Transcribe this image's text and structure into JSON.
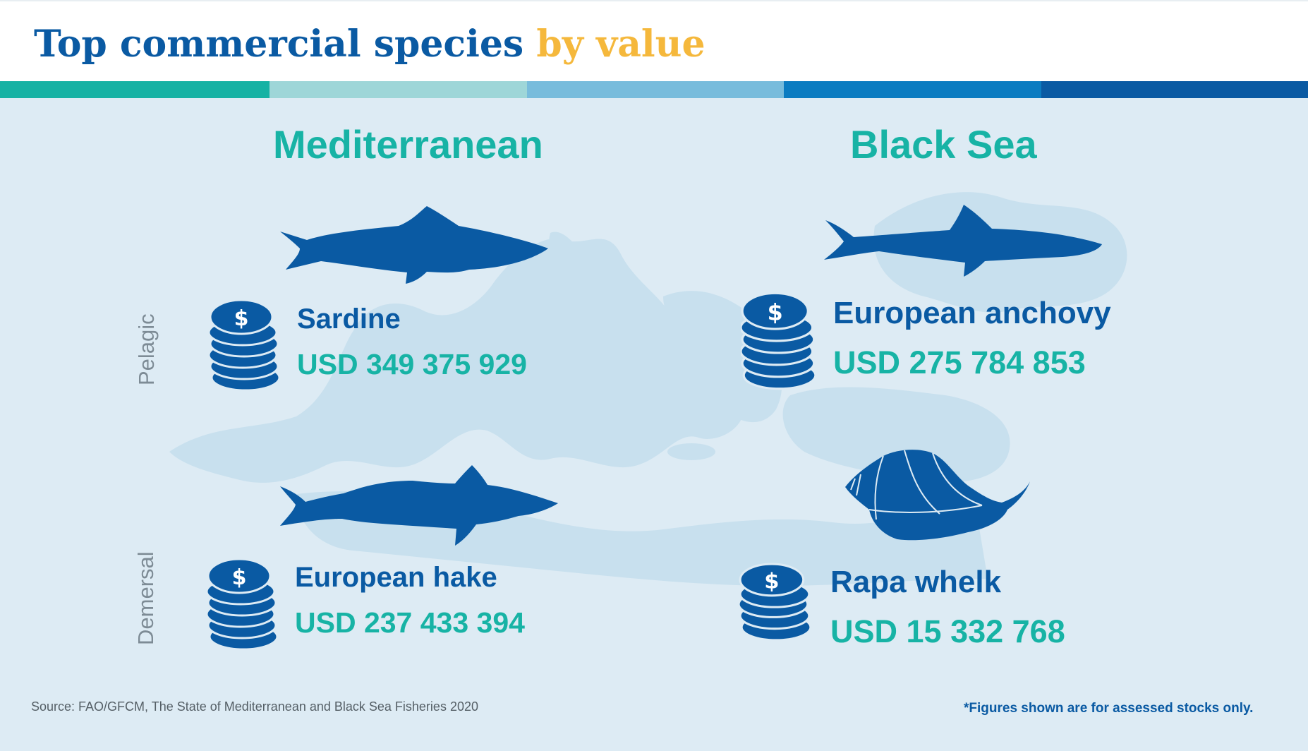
{
  "header": {
    "title_main": "Top commercial species",
    "title_accent": "by value"
  },
  "stripe_colors": [
    "#16b2a4",
    "#9ed6d8",
    "#78bcdc",
    "#0b7cc1",
    "#0a5aa3"
  ],
  "regions": {
    "mediterranean": {
      "title": "Mediterranean",
      "pelagic": {
        "species": "Sardine",
        "value": "USD 349 375 929",
        "icon": "sardine-fish-icon"
      },
      "demersal": {
        "species": "European hake",
        "value": "USD 237 433 394",
        "icon": "hake-fish-icon"
      }
    },
    "black_sea": {
      "title": "Black Sea",
      "pelagic": {
        "species": "European anchovy",
        "value": "USD 275 784 853",
        "icon": "anchovy-fish-icon"
      },
      "demersal": {
        "species": "Rapa whelk",
        "value": "USD 15 332 768",
        "icon": "whelk-shell-icon"
      }
    }
  },
  "row_labels": {
    "pelagic": "Pelagic",
    "demersal": "Demersal"
  },
  "coin_icon": "dollar-coin-stack-icon",
  "source": "Source: FAO/GFCM, The State of Mediterranean and Black Sea Fisheries 2020",
  "footnote": "*Figures shown are for assessed stocks only.",
  "colors": {
    "brand_blue": "#0a5aa3",
    "teal": "#17b3a5",
    "accent_yellow": "#f5b83c",
    "background": "#ddebf4"
  }
}
